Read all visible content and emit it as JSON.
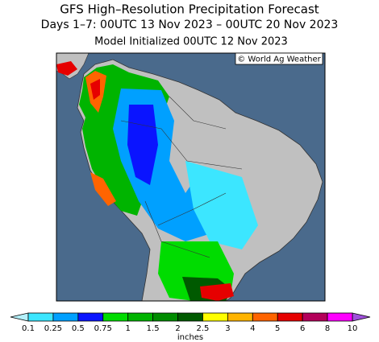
{
  "title": "GFS High–Resolution Precipitation Forecast",
  "subtitle": "Days 1–7: 00UTC 13 Nov 2023 – 00UTC 20 Nov 2023",
  "model_initialized": "Model Initialized 00UTC 12 Nov 2023",
  "credit": "© World Ag Weather",
  "legend": {
    "ticks": [
      0.1,
      0.25,
      0.5,
      0.75,
      1,
      1.5,
      2,
      2.5,
      3,
      4,
      5,
      6,
      8,
      10
    ],
    "colors": [
      "#3ce6ff",
      "#00a0ff",
      "#0a14ff",
      "#00dc00",
      "#00b400",
      "#008c00",
      "#005a00",
      "#ffff00",
      "#ffb400",
      "#ff6400",
      "#e60000",
      "#b4005a",
      "#ff00ff"
    ],
    "under_color": "#b4f0fa",
    "over_color": "#a050dc",
    "unit": "inches"
  }
}
